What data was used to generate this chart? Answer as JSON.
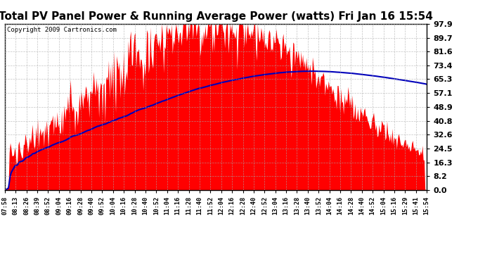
{
  "title": "Total PV Panel Power & Running Average Power (watts) Fri Jan 16 15:54",
  "copyright": "Copyright 2009 Cartronics.com",
  "yticks": [
    0.0,
    8.2,
    16.3,
    24.5,
    32.6,
    40.8,
    48.9,
    57.1,
    65.3,
    73.4,
    81.6,
    89.7,
    97.9
  ],
  "ymax": 97.9,
  "ymin": 0.0,
  "fill_color": "#FF0000",
  "line_color": "#0000BB",
  "background_color": "#FFFFFF",
  "grid_color": "#AAAAAA",
  "title_fontsize": 11,
  "x_tick_labels": [
    "07:58",
    "08:13",
    "08:26",
    "08:39",
    "08:52",
    "09:04",
    "09:16",
    "09:28",
    "09:40",
    "09:52",
    "10:04",
    "10:16",
    "10:28",
    "10:40",
    "10:52",
    "11:04",
    "11:16",
    "11:28",
    "11:40",
    "11:52",
    "12:04",
    "12:16",
    "12:28",
    "12:40",
    "12:52",
    "13:04",
    "13:16",
    "13:28",
    "13:40",
    "13:52",
    "14:04",
    "14:16",
    "14:28",
    "14:40",
    "14:52",
    "15:04",
    "15:16",
    "15:29",
    "15:41",
    "15:54"
  ]
}
